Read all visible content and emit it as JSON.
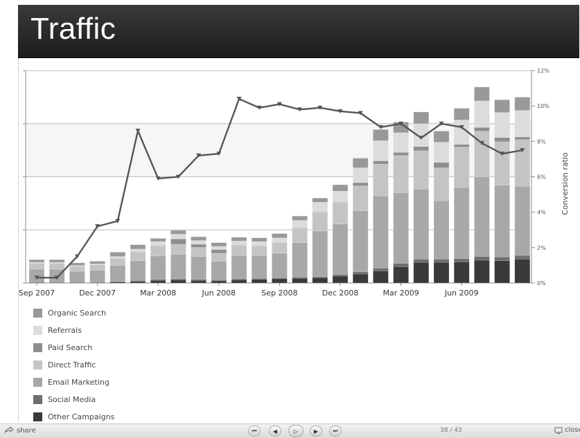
{
  "slide": {
    "title": "Traffic"
  },
  "chart_data": {
    "type": "bar",
    "stacked": true,
    "secondary_type": "line",
    "x_tick_labels": [
      "Sep 2007",
      "Dec 2007",
      "Mar 2008",
      "Jun 2008",
      "Sep 2008",
      "Dec 2008",
      "Mar 2009",
      "Jun 2009"
    ],
    "categories": [
      "Sep 2007",
      "Oct 2007",
      "Nov 2007",
      "Dec 2007",
      "Jan 2008",
      "Feb 2008",
      "Mar 2008",
      "Apr 2008",
      "May 2008",
      "Jun 2008",
      "Jul 2008",
      "Aug 2008",
      "Sep 2008",
      "Oct 2008",
      "Nov 2008",
      "Dec 2008",
      "Jan 2009",
      "Feb 2009",
      "Mar 2009",
      "Apr 2009",
      "May 2009",
      "Jun 2009",
      "Jul 2009",
      "Aug 2009",
      "Sep 2009"
    ],
    "left_axis": {
      "ylim": [
        0,
        4
      ],
      "gridlines": [
        1,
        2,
        3,
        4
      ],
      "tick_labels_visible": false
    },
    "right_axis": {
      "label": "Conversion ratio",
      "ylim": [
        0,
        12
      ],
      "ticks": [
        "0%",
        "2%",
        "4%",
        "6%",
        "8%",
        "10%",
        "12%"
      ]
    },
    "series": [
      {
        "name": "Other Campaigns",
        "color": "#3a3a3a",
        "values": [
          0.01,
          0.01,
          0.01,
          0.01,
          0.02,
          0.03,
          0.05,
          0.06,
          0.05,
          0.04,
          0.06,
          0.07,
          0.08,
          0.09,
          0.1,
          0.13,
          0.17,
          0.23,
          0.31,
          0.39,
          0.39,
          0.4,
          0.43,
          0.42,
          0.45
        ]
      },
      {
        "name": "Social Media",
        "color": "#6e6e6e",
        "values": [
          0.01,
          0.01,
          0.01,
          0.01,
          0.01,
          0.02,
          0.02,
          0.02,
          0.02,
          0.02,
          0.02,
          0.02,
          0.02,
          0.02,
          0.02,
          0.03,
          0.04,
          0.05,
          0.06,
          0.06,
          0.06,
          0.06,
          0.07,
          0.07,
          0.07
        ]
      },
      {
        "name": "Email Marketing",
        "color": "#a8a8a8",
        "values": [
          0.24,
          0.24,
          0.2,
          0.22,
          0.3,
          0.37,
          0.44,
          0.46,
          0.43,
          0.35,
          0.44,
          0.43,
          0.46,
          0.65,
          0.86,
          0.95,
          1.15,
          1.36,
          1.33,
          1.32,
          1.1,
          1.34,
          1.5,
          1.35,
          1.3
        ]
      },
      {
        "name": "Direct Traffic",
        "color": "#c4c4c4",
        "values": [
          0.1,
          0.1,
          0.08,
          0.09,
          0.12,
          0.15,
          0.18,
          0.19,
          0.17,
          0.15,
          0.18,
          0.17,
          0.19,
          0.27,
          0.35,
          0.4,
          0.47,
          0.6,
          0.7,
          0.72,
          0.62,
          0.76,
          0.86,
          0.82,
          0.88
        ]
      },
      {
        "name": "Paid Search",
        "color": "#8e8e8e",
        "values": [
          0.01,
          0.01,
          0.01,
          0.01,
          0.01,
          0.01,
          0.01,
          0.1,
          0.06,
          0.07,
          0.01,
          0.01,
          0.01,
          0.01,
          0.01,
          0.01,
          0.06,
          0.06,
          0.06,
          0.08,
          0.1,
          0.05,
          0.07,
          0.08,
          0.05
        ]
      },
      {
        "name": "Referrals",
        "color": "#dcdcdc",
        "values": [
          0.02,
          0.02,
          0.02,
          0.02,
          0.04,
          0.06,
          0.08,
          0.09,
          0.07,
          0.06,
          0.08,
          0.08,
          0.09,
          0.14,
          0.18,
          0.21,
          0.28,
          0.38,
          0.37,
          0.43,
          0.38,
          0.46,
          0.5,
          0.47,
          0.5
        ]
      },
      {
        "name": "Organic Search",
        "color": "#999999",
        "values": [
          0.05,
          0.05,
          0.05,
          0.05,
          0.08,
          0.08,
          0.06,
          0.07,
          0.07,
          0.07,
          0.07,
          0.07,
          0.08,
          0.08,
          0.08,
          0.12,
          0.18,
          0.21,
          0.2,
          0.22,
          0.21,
          0.22,
          0.26,
          0.24,
          0.25
        ]
      }
    ],
    "conversion_ratio_percent": [
      0.3,
      0.3,
      1.5,
      3.2,
      3.5,
      8.6,
      5.9,
      6.0,
      7.2,
      7.3,
      10.4,
      9.9,
      10.1,
      9.8,
      9.9,
      9.7,
      9.6,
      8.8,
      9.0,
      8.2,
      9.0,
      8.8,
      7.9,
      7.3,
      7.5
    ],
    "legend_placement": "bottom-left",
    "grid": true
  },
  "legend": {
    "items": [
      {
        "label": "Organic Search",
        "color": "#999999"
      },
      {
        "label": "Referrals",
        "color": "#dcdcdc"
      },
      {
        "label": "Paid Search",
        "color": "#8e8e8e"
      },
      {
        "label": "Direct Traffic",
        "color": "#c4c4c4"
      },
      {
        "label": "Email Marketing",
        "color": "#a8a8a8"
      },
      {
        "label": "Social Media",
        "color": "#6e6e6e"
      },
      {
        "label": "Other Campaigns",
        "color": "#3a3a3a"
      }
    ]
  },
  "controls": {
    "share_label": "share",
    "share_icon": "share-icon",
    "page_counter": "38 / 43",
    "close_label": "close",
    "nav": [
      {
        "name": "first-slide-button",
        "glyph": "⏮"
      },
      {
        "name": "prev-slide-button",
        "glyph": "◀"
      },
      {
        "name": "play-button",
        "glyph": "▷"
      },
      {
        "name": "next-slide-button",
        "glyph": "▶"
      },
      {
        "name": "last-slide-button",
        "glyph": "⏭"
      }
    ]
  }
}
